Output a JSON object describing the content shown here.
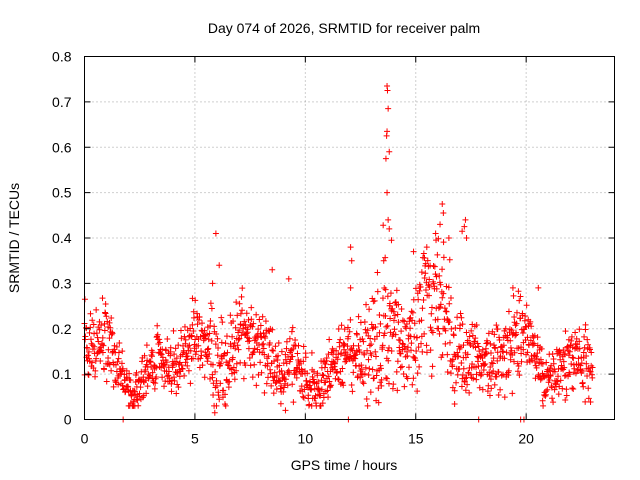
{
  "chart_data": {
    "type": "scatter",
    "title": "Day 074 of 2026, SRMTID for receiver palm",
    "xlabel": "GPS time / hours",
    "ylabel": "SRMTID / TECUs",
    "xlim": [
      0,
      24
    ],
    "ylim": [
      0,
      0.8
    ],
    "xticks": [
      0,
      5,
      10,
      15,
      20
    ],
    "xtick_labels": [
      "0",
      "5",
      "10",
      "15",
      "20"
    ],
    "yticks": [
      0,
      0.1,
      0.2,
      0.3,
      0.4,
      0.5,
      0.6,
      0.7,
      0.8
    ],
    "ytick_labels": [
      "0",
      "0.1",
      "0.2",
      "0.3",
      "0.4",
      "0.5",
      "0.6",
      "0.7",
      "0.8"
    ],
    "grid": true,
    "marker": "plus",
    "series_color": "#ff0000",
    "series": [
      {
        "name": "SRMTID",
        "profile_hours": [
          0.0,
          0.5,
          1.0,
          1.5,
          2.0,
          2.5,
          3.0,
          3.5,
          4.0,
          4.5,
          5.0,
          5.5,
          6.0,
          6.5,
          7.0,
          7.5,
          8.0,
          8.5,
          9.0,
          9.5,
          10.0,
          10.5,
          11.0,
          11.5,
          12.0,
          12.5,
          13.0,
          13.5,
          14.0,
          14.5,
          15.0,
          15.5,
          16.0,
          16.5,
          17.0,
          17.5,
          18.0,
          18.5,
          19.0,
          19.5,
          20.0,
          20.5,
          21.0,
          21.5,
          22.0,
          22.5,
          23.0
        ],
        "profile_typical": [
          0.15,
          0.14,
          0.15,
          0.13,
          0.11,
          0.1,
          0.09,
          0.1,
          0.11,
          0.14,
          0.17,
          0.16,
          0.18,
          0.15,
          0.17,
          0.13,
          0.14,
          0.15,
          0.1,
          0.12,
          0.13,
          0.1,
          0.09,
          0.08,
          0.12,
          0.16,
          0.19,
          0.2,
          0.22,
          0.17,
          0.2,
          0.22,
          0.24,
          0.2,
          0.18,
          0.14,
          0.12,
          0.14,
          0.15,
          0.16,
          0.14,
          0.13,
          0.12,
          0.13,
          0.12,
          0.13,
          0.13
        ],
        "profile_spread": [
          0.05,
          0.05,
          0.06,
          0.05,
          0.04,
          0.04,
          0.04,
          0.04,
          0.04,
          0.05,
          0.07,
          0.06,
          0.08,
          0.06,
          0.06,
          0.05,
          0.05,
          0.06,
          0.05,
          0.05,
          0.05,
          0.04,
          0.04,
          0.04,
          0.06,
          0.07,
          0.1,
          0.14,
          0.08,
          0.07,
          0.09,
          0.1,
          0.1,
          0.1,
          0.09,
          0.06,
          0.05,
          0.06,
          0.06,
          0.07,
          0.05,
          0.05,
          0.05,
          0.05,
          0.05,
          0.05,
          0.05
        ],
        "extreme_points": [
          {
            "x": 0.02,
            "y": 0.265
          },
          {
            "x": 5.95,
            "y": 0.41
          },
          {
            "x": 6.1,
            "y": 0.34
          },
          {
            "x": 5.8,
            "y": 0.3
          },
          {
            "x": 8.5,
            "y": 0.33
          },
          {
            "x": 9.25,
            "y": 0.31
          },
          {
            "x": 12.05,
            "y": 0.38
          },
          {
            "x": 12.1,
            "y": 0.35
          },
          {
            "x": 12.05,
            "y": 0.29
          },
          {
            "x": 13.7,
            "y": 0.735
          },
          {
            "x": 13.72,
            "y": 0.725
          },
          {
            "x": 13.75,
            "y": 0.685
          },
          {
            "x": 13.7,
            "y": 0.635
          },
          {
            "x": 13.68,
            "y": 0.625
          },
          {
            "x": 13.8,
            "y": 0.59
          },
          {
            "x": 13.65,
            "y": 0.575
          },
          {
            "x": 13.7,
            "y": 0.5
          },
          {
            "x": 13.75,
            "y": 0.44
          },
          {
            "x": 13.8,
            "y": 0.42
          },
          {
            "x": 13.9,
            "y": 0.395
          },
          {
            "x": 13.55,
            "y": 0.35
          },
          {
            "x": 16.2,
            "y": 0.475
          },
          {
            "x": 16.25,
            "y": 0.455
          },
          {
            "x": 16.1,
            "y": 0.43
          },
          {
            "x": 15.9,
            "y": 0.41
          },
          {
            "x": 16.5,
            "y": 0.4
          },
          {
            "x": 17.25,
            "y": 0.44
          },
          {
            "x": 17.2,
            "y": 0.425
          },
          {
            "x": 17.1,
            "y": 0.415
          },
          {
            "x": 17.3,
            "y": 0.4
          },
          {
            "x": 14.9,
            "y": 0.37
          },
          {
            "x": 15.5,
            "y": 0.38
          },
          {
            "x": 20.55,
            "y": 0.29
          },
          {
            "x": 19.4,
            "y": 0.29
          },
          {
            "x": 5.9,
            "y": 0.015
          },
          {
            "x": 1.75,
            "y": 0.0
          },
          {
            "x": 11.95,
            "y": 0.0
          },
          {
            "x": 17.85,
            "y": 0.0
          },
          {
            "x": 19.75,
            "y": 0.0
          },
          {
            "x": 19.9,
            "y": 0.0
          },
          {
            "x": 9.1,
            "y": 0.02
          },
          {
            "x": 10.7,
            "y": 0.03
          }
        ],
        "point_count": 1500
      }
    ]
  }
}
